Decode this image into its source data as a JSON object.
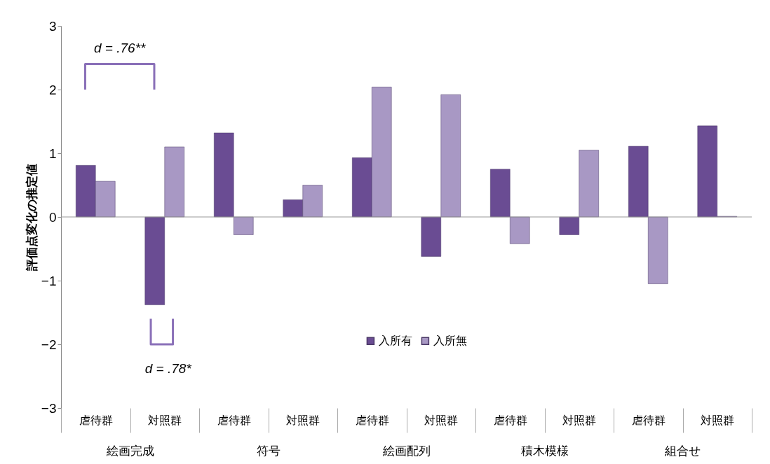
{
  "chart_data": {
    "type": "bar",
    "ylabel": "評価点変化の推定値",
    "categories": [
      "虐待群",
      "対照群",
      "虐待群",
      "対照群",
      "虐待群",
      "対照群",
      "虐待群",
      "対照群",
      "虐待群",
      "対照群"
    ],
    "series": [
      {
        "name": "入所有",
        "color": "#6a4c93",
        "values": [
          0.81,
          -1.38,
          1.32,
          0.27,
          0.93,
          -0.62,
          0.75,
          -0.28,
          1.11,
          1.43
        ]
      },
      {
        "name": "入所無",
        "color": "#a898c4",
        "values": [
          0.56,
          1.1,
          -0.28,
          0.5,
          2.04,
          1.92,
          -0.42,
          1.05,
          -1.05,
          0.01
        ]
      }
    ],
    "ylim": [
      -3,
      3
    ],
    "yticks": [
      -3,
      -2,
      -1,
      0,
      1,
      2,
      3
    ],
    "legend": "bottom",
    "annotations": [
      "絵画完成",
      "符号",
      "絵画配列",
      "積木模様",
      "組合せ",
      "d = .76**",
      "d = .78*"
    ]
  }
}
